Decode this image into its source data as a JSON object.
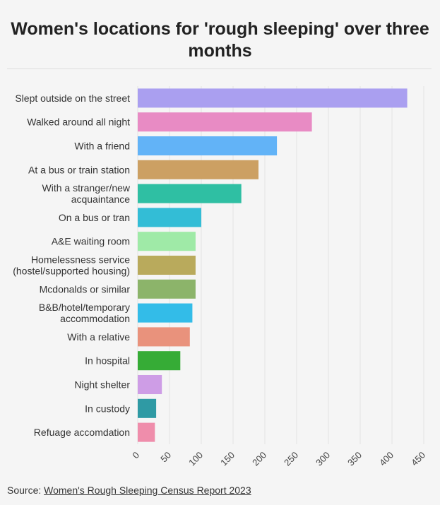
{
  "title": "Women's locations for 'rough sleeping' over three months",
  "source": {
    "prefix": "Source: ",
    "link_text": "Women's Rough Sleeping Census Report 2023"
  },
  "chart_data": {
    "type": "bar",
    "orientation": "horizontal",
    "title": "Women's locations for 'rough sleeping' over three months",
    "xlabel": "",
    "ylabel": "",
    "xlim": [
      0,
      450
    ],
    "xticks": [
      0,
      50,
      100,
      150,
      200,
      250,
      300,
      350,
      400,
      450
    ],
    "grid": true,
    "categories": [
      "Slept outside on the street",
      "Walked around all night",
      "With a friend",
      "At a bus or train station",
      "With a stranger/new acquaintance",
      "On a bus or tran",
      "A&E waiting room",
      "Homelessness service (hostel/supported housing)",
      "Mcdonalds or similar",
      "B&B/hotel/temporary accommodation",
      "With a relative",
      "In hospital",
      "Night shelter",
      "In custody",
      "Refuage accomdation"
    ],
    "category_lines": [
      [
        "Slept outside on the street"
      ],
      [
        "Walked around all night"
      ],
      [
        "With a friend"
      ],
      [
        "At a bus or train station"
      ],
      [
        "With a stranger/new",
        "acquaintance"
      ],
      [
        "On a bus or tran"
      ],
      [
        "A&E waiting room"
      ],
      [
        "Homelessness service",
        "(hostel/supported housing)"
      ],
      [
        "Mcdonalds or similar"
      ],
      [
        "B&B/hotel/temporary",
        "accommodation"
      ],
      [
        "With a relative"
      ],
      [
        "In hospital"
      ],
      [
        "Night shelter"
      ],
      [
        "In custody"
      ],
      [
        "Refuage accomdation"
      ]
    ],
    "values": [
      424,
      274,
      219,
      190,
      163,
      100,
      91,
      91,
      91,
      86,
      82,
      67,
      38,
      29,
      27
    ],
    "colors": [
      "#aa9ff0",
      "#e88bc4",
      "#62b3f7",
      "#cca063",
      "#2fbfa3",
      "#33bdd6",
      "#9feaa7",
      "#b9aa5c",
      "#8cb46a",
      "#33bce8",
      "#e9927c",
      "#36ac36",
      "#ce9de6",
      "#2f9aa4",
      "#ef8dab"
    ]
  }
}
